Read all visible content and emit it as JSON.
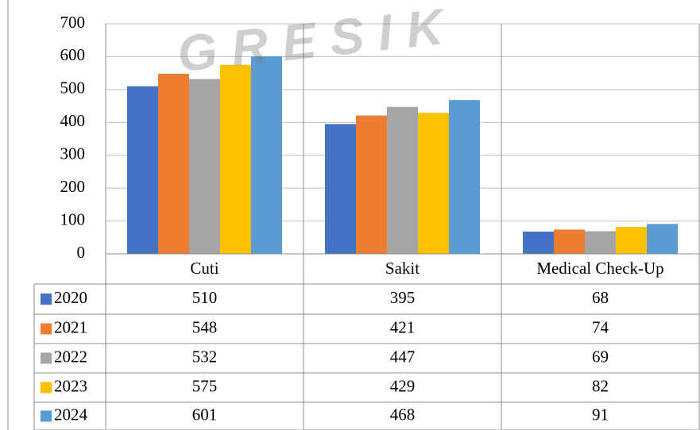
{
  "chart_data": {
    "type": "bar",
    "watermark": "GRESIK",
    "categories": [
      "Cuti",
      "Sakit",
      "Medical Check-Up"
    ],
    "series": [
      {
        "name": "2020",
        "color": "#4472c4",
        "values": [
          510,
          395,
          68
        ]
      },
      {
        "name": "2021",
        "color": "#ed7d31",
        "values": [
          548,
          421,
          74
        ]
      },
      {
        "name": "2022",
        "color": "#a5a5a5",
        "values": [
          532,
          447,
          69
        ]
      },
      {
        "name": "2023",
        "color": "#ffc000",
        "values": [
          575,
          429,
          82
        ]
      },
      {
        "name": "2024",
        "color": "#5b9bd5",
        "values": [
          601,
          468,
          91
        ]
      }
    ],
    "ylim": [
      0,
      700
    ],
    "yticks": [
      0,
      100,
      200,
      300,
      400,
      500,
      600,
      700
    ],
    "grid": true
  }
}
